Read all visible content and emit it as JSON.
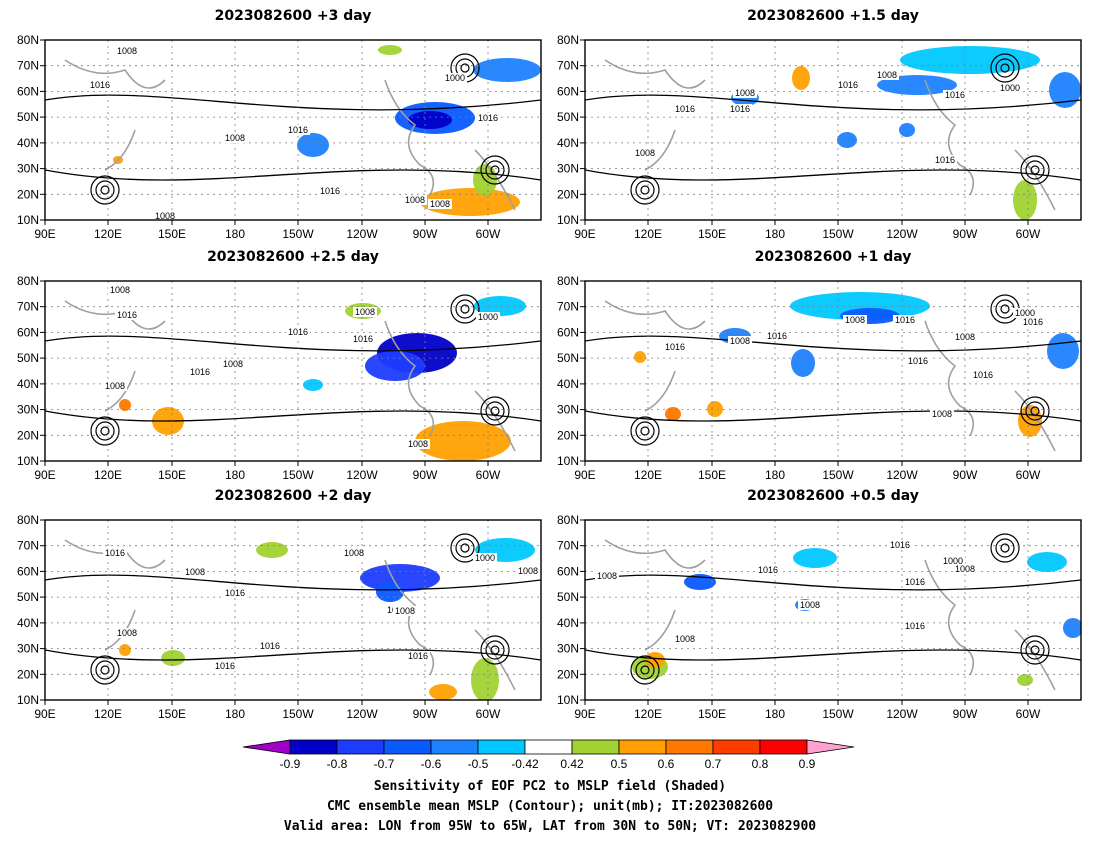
{
  "chart_data": [
    {
      "type": "heatmap",
      "title": "2023082600 +3 day",
      "x_ticks": [
        "90E",
        "120E",
        "150E",
        "180",
        "150W",
        "120W",
        "90W",
        "60W"
      ],
      "y_ticks": [
        "10N",
        "20N",
        "30N",
        "40N",
        "50N",
        "60N",
        "70N",
        "80N"
      ],
      "contour_labels": [
        "1008",
        "1016",
        "1000",
        "1016",
        "1008",
        "1016",
        "1016",
        "1008",
        "1008",
        "1008"
      ]
    },
    {
      "type": "heatmap",
      "title": "2023082600 +1.5 day",
      "x_ticks": [
        "90E",
        "120E",
        "150E",
        "180",
        "150W",
        "120W",
        "90W",
        "60W"
      ],
      "y_ticks": [
        "10N",
        "20N",
        "30N",
        "40N",
        "50N",
        "60N",
        "70N",
        "80N"
      ],
      "contour_labels": [
        "1008",
        "1016",
        "1016",
        "1008",
        "1016",
        "1000",
        "1016",
        "1008",
        "1016"
      ]
    },
    {
      "type": "heatmap",
      "title": "2023082600 +2.5 day",
      "x_ticks": [
        "90E",
        "120E",
        "150E",
        "180",
        "150W",
        "120W",
        "90W",
        "60W"
      ],
      "y_ticks": [
        "10N",
        "20N",
        "30N",
        "40N",
        "50N",
        "60N",
        "70N",
        "80N"
      ],
      "contour_labels": [
        "1008",
        "1016",
        "1008",
        "1016",
        "1008",
        "1016",
        "1016",
        "1000",
        "1008",
        "1008"
      ]
    },
    {
      "type": "heatmap",
      "title": "2023082600 +1 day",
      "x_ticks": [
        "90E",
        "120E",
        "150E",
        "180",
        "150W",
        "120W",
        "90W",
        "60W"
      ],
      "y_ticks": [
        "10N",
        "20N",
        "30N",
        "40N",
        "50N",
        "60N",
        "70N",
        "80N"
      ],
      "contour_labels": [
        "1016",
        "1008",
        "1016",
        "1008",
        "1016",
        "1000",
        "1008",
        "1016",
        "1016",
        "1016",
        "1008"
      ]
    },
    {
      "type": "heatmap",
      "title": "2023082600 +2 day",
      "x_ticks": [
        "90E",
        "120E",
        "150E",
        "180",
        "150W",
        "120W",
        "90W",
        "60W"
      ],
      "y_ticks": [
        "10N",
        "20N",
        "30N",
        "40N",
        "50N",
        "60N",
        "70N",
        "80N"
      ],
      "contour_labels": [
        "1016",
        "1008",
        "1016",
        "1008",
        "1000",
        "1008",
        "1016",
        "1016",
        "1016",
        "1008",
        "1016",
        "1008"
      ]
    },
    {
      "type": "heatmap",
      "title": "2023082600 +0.5 day",
      "x_ticks": [
        "90E",
        "120E",
        "150E",
        "180",
        "150W",
        "120W",
        "90W",
        "60W"
      ],
      "y_ticks": [
        "10N",
        "20N",
        "30N",
        "40N",
        "50N",
        "60N",
        "70N",
        "80N"
      ],
      "contour_labels": [
        "1008",
        "1016",
        "1008",
        "1016",
        "1016",
        "1000",
        "1008",
        "1016",
        "1008"
      ]
    }
  ],
  "colorbar": {
    "ticks": [
      "-0.9",
      "-0.8",
      "-0.7",
      "-0.6",
      "-0.5",
      "-0.42",
      "0.42",
      "0.5",
      "0.6",
      "0.7",
      "0.8",
      "0.9"
    ],
    "colors": [
      "#a000c8",
      "#0000c8",
      "#1e3cff",
      "#0a5aff",
      "#1e82ff",
      "#00c8ff",
      "#ffffff",
      "#a0d232",
      "#ffa000",
      "#ff7800",
      "#ff3c00",
      "#ff0000",
      "#ffa0d2"
    ]
  },
  "caption": [
    "Sensitivity of EOF PC2 to MSLP field (Shaded)",
    "CMC ensemble mean MSLP (Contour); unit(mb); IT:2023082600",
    "Valid area: LON from 95W to 65W, LAT from 30N to 50N; VT: 2023082900"
  ]
}
